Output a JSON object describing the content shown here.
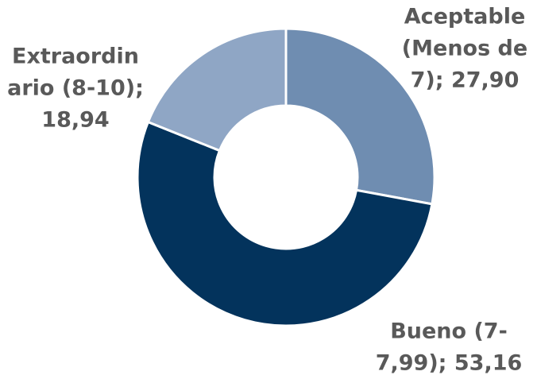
{
  "chart_data": {
    "type": "donut",
    "values": [
      27.9,
      53.16,
      18.94
    ],
    "value_labels": [
      [
        "Aceptable",
        "(Menos de",
        "7); 27,90"
      ],
      [
        "Bueno (7-",
        "7,99); 53,16"
      ],
      [
        "Extraordin",
        "ario (8-10);",
        "18,94"
      ]
    ],
    "colors": [
      "#6f8db1",
      "#03335c",
      "#8fa6c5"
    ]
  }
}
